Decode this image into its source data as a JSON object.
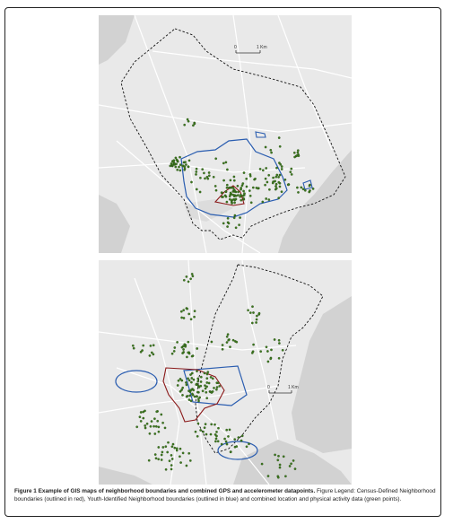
{
  "figure": {
    "caption_label": "Figure 1",
    "caption_title": "Example of GIS maps of neighborhood boundaries and combined GPS and accelerometer datapoints.",
    "caption_body": "Figure Legend: Census-Defined Neighborhood boundaries (outlined in red), Youth-Identified Neighborhood boundaries (outlined in blue) and combined location and physical activity data (green points)."
  },
  "maps": {
    "top": {
      "scale_start": "0",
      "scale_end": "1 Km"
    },
    "bottom": {
      "scale_start": "0",
      "scale_end": "1 Km"
    }
  },
  "legend_colors": {
    "census_boundary": "#8b1a1a",
    "youth_boundary": "#2a5db0",
    "datapoints": "#3d7a1e",
    "neighborhood_outline": "#111111",
    "water": "#d2d2d2",
    "land": "#e9e9e9"
  }
}
